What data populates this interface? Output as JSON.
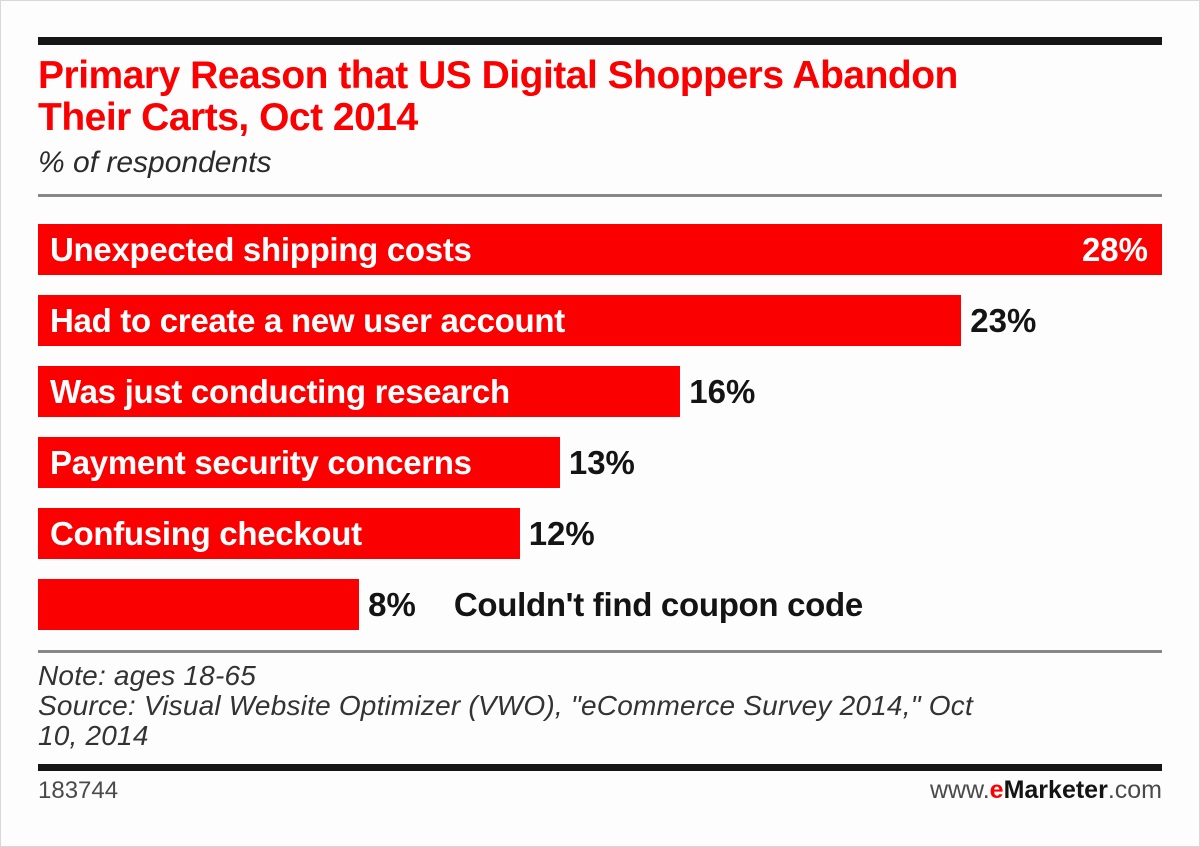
{
  "header": {
    "title": "Primary Reason that US Digital Shoppers Abandon Their Carts, Oct 2014",
    "title_lines": [
      "Primary Reason that US Digital Shoppers Abandon",
      "Their Carts, Oct 2014"
    ],
    "subtitle": "% of respondents"
  },
  "chart_data": {
    "type": "bar",
    "orientation": "horizontal",
    "title": "Primary Reason that US Digital Shoppers Abandon Their Carts, Oct 2014",
    "subtitle": "% of respondents",
    "unit": "%",
    "categories": [
      "Unexpected shipping costs",
      "Had to create a new user account",
      "Was just conducting research",
      "Payment security concerns",
      "Confusing checkout",
      "Couldn't find coupon code"
    ],
    "values": [
      28,
      23,
      16,
      13,
      12,
      8
    ],
    "xlim": [
      0,
      28
    ],
    "grid": false,
    "legend": "none",
    "bar_color": "#fa0000",
    "bars": [
      {
        "label": "Unexpected shipping costs",
        "value": 28,
        "display": "28%",
        "label_position": "inside",
        "value_position": "inside"
      },
      {
        "label": "Had to create a new user account",
        "value": 23,
        "display": "23%",
        "label_position": "inside",
        "value_position": "outside"
      },
      {
        "label": "Was just conducting research",
        "value": 16,
        "display": "16%",
        "label_position": "inside",
        "value_position": "outside"
      },
      {
        "label": "Payment security concerns",
        "value": 13,
        "display": "13%",
        "label_position": "inside",
        "value_position": "outside"
      },
      {
        "label": "Confusing checkout",
        "value": 12,
        "display": "12%",
        "label_position": "inside",
        "value_position": "outside"
      },
      {
        "label": "Couldn't find coupon code",
        "value": 8,
        "display": "8%",
        "label_position": "outside",
        "value_position": "outside"
      }
    ]
  },
  "footer_notes": {
    "note": "Note: ages 18-65",
    "source": "Source: Visual Website Optimizer (VWO), \"eCommerce Survey 2014,\" Oct 10, 2014",
    "source_lines": [
      "Source: Visual Website Optimizer (VWO), \"eCommerce Survey 2014,\" Oct",
      "10, 2014"
    ]
  },
  "footer": {
    "chart_id": "183744",
    "website": {
      "prefix": "www.",
      "brand_e": "e",
      "brand_rest": "Marketer",
      "suffix": ".com"
    }
  },
  "colors": {
    "accent_red": "#fa0000",
    "text_black": "#141414",
    "label_white": "#ffffff",
    "divider_gray": "#878787",
    "rule_black": "#161616"
  }
}
